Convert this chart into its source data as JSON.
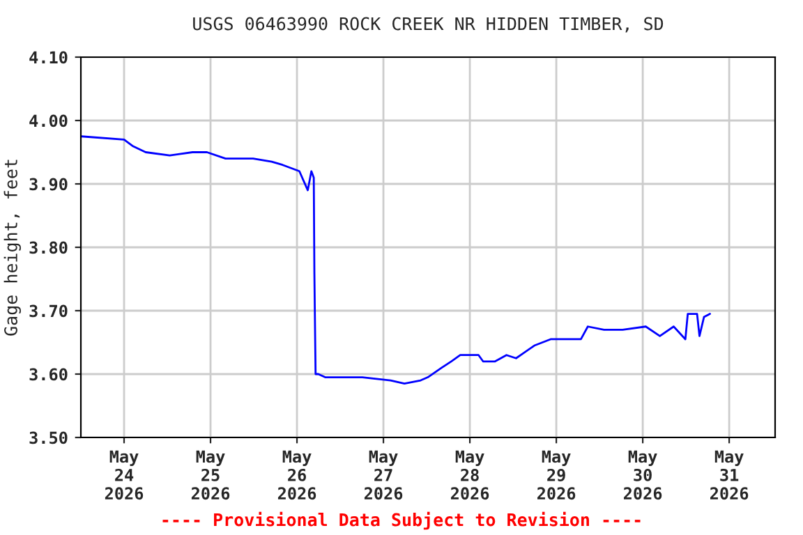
{
  "chart_data": {
    "type": "line",
    "title": "USGS 06463990 ROCK CREEK NR HIDDEN TIMBER, SD",
    "ylabel": "Gage height, feet",
    "x": [
      "2026-05-23T12:07",
      "2026-05-24T00:00",
      "2026-05-24T02:20",
      "2026-05-24T06:00",
      "2026-05-24T12:40",
      "2026-05-24T19:00",
      "2026-05-24T23:00",
      "2026-05-25T04:10",
      "2026-05-25T11:50",
      "2026-05-25T17:00",
      "2026-05-25T20:00",
      "2026-05-26T00:40",
      "2026-05-26T03:00",
      "2026-05-26T04:00",
      "2026-05-26T04:40",
      "2026-05-26T04:50",
      "2026-05-26T05:10",
      "2026-05-26T05:55",
      "2026-05-26T07:50",
      "2026-05-26T18:10",
      "2026-05-27T02:00",
      "2026-05-27T05:50",
      "2026-05-27T10:20",
      "2026-05-27T12:20",
      "2026-05-27T16:10",
      "2026-05-27T18:50",
      "2026-05-27T21:20",
      "2026-05-28T02:25",
      "2026-05-28T03:40",
      "2026-05-28T07:00",
      "2026-05-28T10:10",
      "2026-05-28T12:50",
      "2026-05-28T17:55",
      "2026-05-28T22:25",
      "2026-05-29T02:55",
      "2026-05-29T06:50",
      "2026-05-29T08:45",
      "2026-05-29T13:15",
      "2026-05-29T18:25",
      "2026-05-30T00:50",
      "2026-05-30T04:45",
      "2026-05-30T08:35",
      "2026-05-30T11:50",
      "2026-05-30T12:30",
      "2026-05-30T15:05",
      "2026-05-30T15:45",
      "2026-05-30T17:00",
      "2026-05-30T18:40"
    ],
    "series": [
      {
        "color": "#0000ff",
        "values": [
          3.975,
          3.97,
          3.96,
          3.95,
          3.945,
          3.95,
          3.95,
          3.94,
          3.94,
          3.935,
          3.93,
          3.92,
          3.89,
          3.92,
          3.91,
          3.76,
          3.6,
          3.6,
          3.595,
          3.595,
          3.59,
          3.585,
          3.59,
          3.595,
          3.61,
          3.62,
          3.63,
          3.63,
          3.62,
          3.62,
          3.63,
          3.625,
          3.645,
          3.655,
          3.655,
          3.655,
          3.675,
          3.67,
          3.67,
          3.675,
          3.66,
          3.675,
          3.655,
          3.695,
          3.695,
          3.66,
          3.69,
          3.695
        ]
      }
    ],
    "xlim": [
      "2026-05-23T12:00",
      "2026-05-31T12:45"
    ],
    "xticks": [
      {
        "value": "2026-05-24",
        "label": "May\n24\n2026"
      },
      {
        "value": "2026-05-25",
        "label": "May\n25\n2026"
      },
      {
        "value": "2026-05-26",
        "label": "May\n26\n2026"
      },
      {
        "value": "2026-05-27",
        "label": "May\n27\n2026"
      },
      {
        "value": "2026-05-28",
        "label": "May\n28\n2026"
      },
      {
        "value": "2026-05-29",
        "label": "May\n29\n2026"
      },
      {
        "value": "2026-05-30",
        "label": "May\n30\n2026"
      },
      {
        "value": "2026-05-31",
        "label": "May\n31\n2026"
      }
    ],
    "ylim": [
      3.5,
      4.1
    ],
    "yticks": [
      {
        "value": 3.5,
        "label": "3.50"
      },
      {
        "value": 3.6,
        "label": "3.60"
      },
      {
        "value": 3.7,
        "label": "3.70"
      },
      {
        "value": 3.8,
        "label": "3.80"
      },
      {
        "value": 3.9,
        "label": "3.90"
      },
      {
        "value": 4.0,
        "label": "4.00"
      },
      {
        "value": 4.1,
        "label": "4.10"
      }
    ],
    "grid": true,
    "annotations": [
      "---- Provisional Data Subject to Revision ----"
    ]
  }
}
